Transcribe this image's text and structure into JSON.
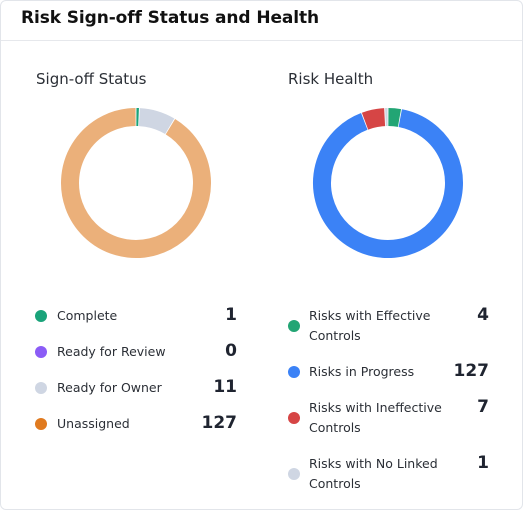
{
  "header": {
    "title": "Risk Sign-off Status and Health"
  },
  "signoff": {
    "title": "Sign-off Status",
    "items": [
      {
        "label": "Complete",
        "value": "1",
        "color": "#1aa37a"
      },
      {
        "label": "Ready for Review",
        "value": "0",
        "color": "#8b5cf6"
      },
      {
        "label": "Ready for Owner",
        "value": "11",
        "color": "#cfd6e3"
      },
      {
        "label": "Unassigned",
        "value": "127",
        "color": "#e07a1f"
      }
    ],
    "donut_colors": [
      "#1aa37a",
      "#8b5cf6",
      "#cfd6e3",
      "#ebb07a"
    ]
  },
  "health": {
    "title": "Risk Health",
    "items": [
      {
        "label": "Risks with Effective Controls",
        "value": "4",
        "color": "#22a574"
      },
      {
        "label": "Risks in Progress",
        "value": "127",
        "color": "#3b82f6"
      },
      {
        "label": "Risks with Ineffective Controls",
        "value": "7",
        "color": "#d64545"
      },
      {
        "label": "Risks with No Linked Controls",
        "value": "1",
        "color": "#cfd6e3"
      }
    ],
    "donut_colors": [
      "#22a574",
      "#3b82f6",
      "#d64545",
      "#cfd6e3"
    ]
  }
}
